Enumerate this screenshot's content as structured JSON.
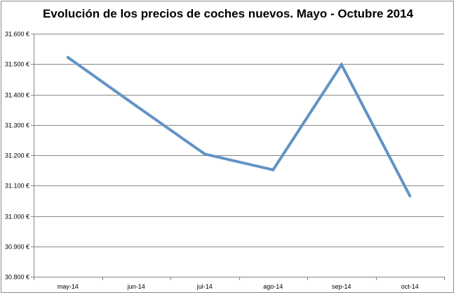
{
  "chart_data": {
    "type": "line",
    "title": "Evolución de los precios de coches nuevos. Mayo - Octubre 2014",
    "xlabel": "",
    "ylabel": "",
    "categories": [
      "may-14",
      "jun-14",
      "jul-14",
      "ago-14",
      "sep-14",
      "oct-14"
    ],
    "series": [
      {
        "values": [
          31522,
          31362,
          31204,
          31152,
          31498,
          31066
        ]
      }
    ],
    "ylim": [
      30800,
      31600
    ],
    "yticks": [
      30800,
      30900,
      31000,
      31100,
      31200,
      31300,
      31400,
      31500,
      31600
    ],
    "ytick_labels": [
      "30.800 €",
      "30.900 €",
      "31.000 €",
      "31.100 €",
      "31.200 €",
      "31.300 €",
      "31.400 €",
      "31.500 €",
      "31.600 €"
    ],
    "grid": true,
    "legend": "none",
    "colors": {
      "line": "#6293c5",
      "grid": "#878787",
      "axis": "#878787"
    }
  }
}
